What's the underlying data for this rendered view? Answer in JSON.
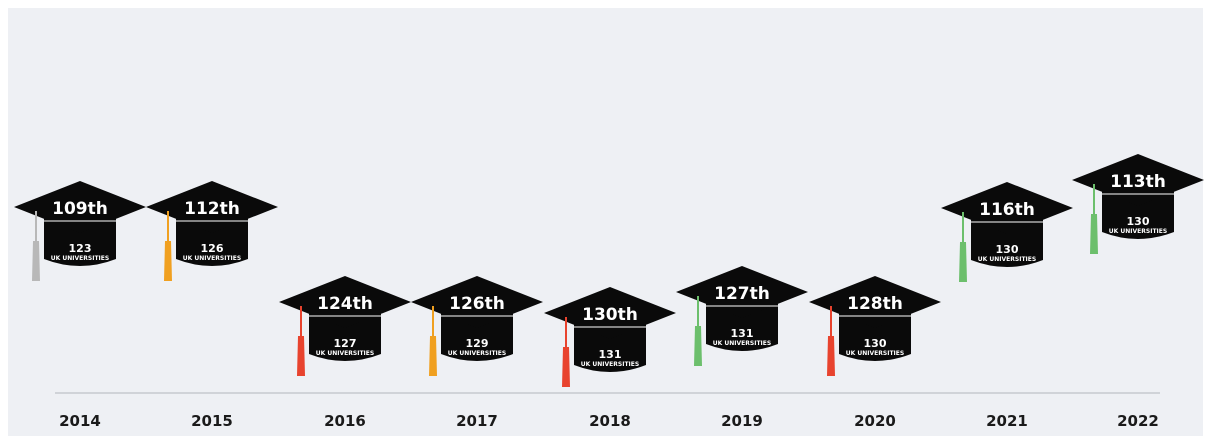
{
  "items": [
    {
      "year": "2014",
      "rank": "109th",
      "total": "123",
      "subtitle": "UK UNIVERSITIES",
      "tassel_color": "#b8b8b8"
    },
    {
      "year": "2015",
      "rank": "112th",
      "total": "126",
      "subtitle": "UK UNIVERSITIES",
      "tassel_color": "#f0a020"
    },
    {
      "year": "2016",
      "rank": "124th",
      "total": "127",
      "subtitle": "UK UNIVERSITIES",
      "tassel_color": "#e8432e"
    },
    {
      "year": "2017",
      "rank": "126th",
      "total": "129",
      "subtitle": "UK UNIVERSITIES",
      "tassel_color": "#f0a020"
    },
    {
      "year": "2018",
      "rank": "130th",
      "total": "131",
      "subtitle": "UK UNIVERSITIES",
      "tassel_color": "#e8432e"
    },
    {
      "year": "2019",
      "rank": "127th",
      "total": "131",
      "subtitle": "UK UNIVERSITIES",
      "tassel_color": "#6cbf6c"
    },
    {
      "year": "2020",
      "rank": "128th",
      "total": "130",
      "subtitle": "UK UNIVERSITIES",
      "tassel_color": "#e8432e"
    },
    {
      "year": "2021",
      "rank": "116th",
      "total": "130",
      "subtitle": "UK UNIVERSITIES",
      "tassel_color": "#6cbf6c"
    },
    {
      "year": "2022",
      "rank": "113th",
      "total": "130",
      "subtitle": "UK UNIVERSITIES",
      "tassel_color": "#6cbf6c"
    }
  ]
}
